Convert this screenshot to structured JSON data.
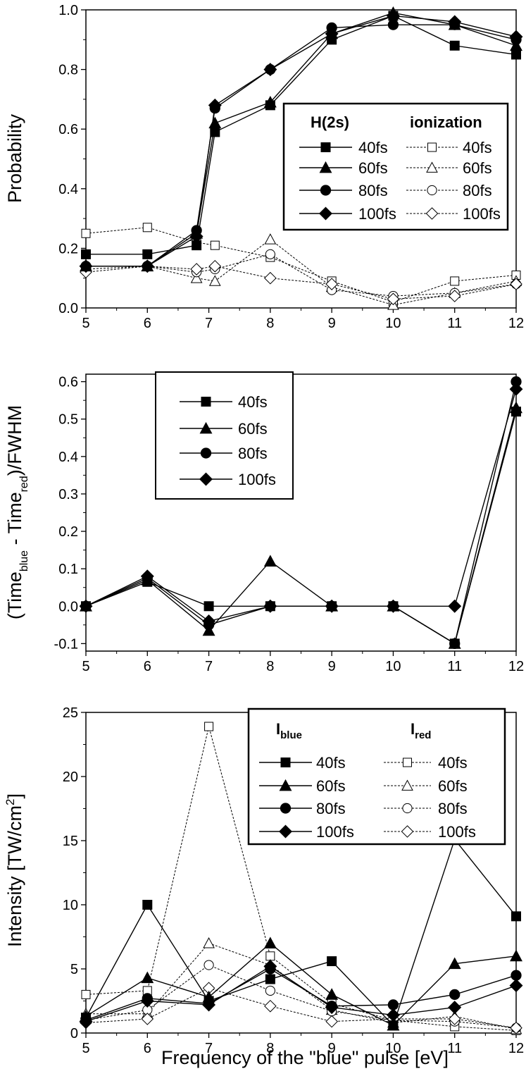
{
  "chart_data": [
    {
      "type": "line",
      "ylabel": "Probability",
      "xlim": [
        5,
        12
      ],
      "ylim": [
        0,
        1
      ],
      "xticks": [
        "5",
        "6",
        "7",
        "8",
        "9",
        "10",
        "11",
        "12"
      ],
      "yticks": [
        "0.0",
        "0.2",
        "0.4",
        "0.6",
        "0.8",
        "1.0"
      ],
      "legend": {
        "position": "right",
        "col1_title": "H(2s)",
        "col2_title": "ionization",
        "labels": [
          "40fs",
          "60fs",
          "80fs",
          "100fs"
        ]
      },
      "x": [
        5,
        6,
        6.8,
        7.1,
        8,
        9,
        10,
        11,
        12
      ],
      "series": [
        {
          "name": "H(2s) 40fs",
          "group": "filled",
          "marker": "square",
          "values": [
            0.18,
            0.18,
            0.21,
            0.59,
            0.68,
            0.9,
            0.98,
            0.88,
            0.85
          ]
        },
        {
          "name": "H(2s) 60fs",
          "group": "filled",
          "marker": "triangle",
          "values": [
            0.14,
            0.14,
            0.25,
            0.62,
            0.69,
            0.92,
            0.99,
            0.95,
            0.88
          ]
        },
        {
          "name": "H(2s) 80fs",
          "group": "filled",
          "marker": "circle",
          "values": [
            0.14,
            0.14,
            0.26,
            0.67,
            0.8,
            0.94,
            0.95,
            0.95,
            0.9
          ]
        },
        {
          "name": "H(2s) 100fs",
          "group": "filled",
          "marker": "diamond",
          "values": [
            0.14,
            0.14,
            0.24,
            0.68,
            0.8,
            0.92,
            0.98,
            0.96,
            0.91
          ]
        },
        {
          "name": "ionization 40fs",
          "group": "open",
          "marker": "square",
          "values": [
            0.25,
            0.27,
            0.22,
            0.21,
            0.17,
            0.09,
            0.02,
            0.09,
            0.11
          ]
        },
        {
          "name": "ionization 60fs",
          "group": "open",
          "marker": "triangle",
          "values": [
            0.14,
            0.14,
            0.1,
            0.09,
            0.23,
            0.07,
            0.01,
            0.05,
            0.09
          ]
        },
        {
          "name": "ionization 80fs",
          "group": "open",
          "marker": "circle",
          "values": [
            0.13,
            0.14,
            0.12,
            0.13,
            0.18,
            0.06,
            0.04,
            0.05,
            0.08
          ]
        },
        {
          "name": "ionization 100fs",
          "group": "open",
          "marker": "diamond",
          "values": [
            0.12,
            0.14,
            0.13,
            0.14,
            0.1,
            0.08,
            0.03,
            0.04,
            0.08
          ]
        }
      ]
    },
    {
      "type": "line",
      "ylabel_parts": [
        "(Time",
        "blue",
        " - Time",
        "red",
        ")/FWHM"
      ],
      "xlim": [
        5,
        12
      ],
      "ylim": [
        -0.12,
        0.62
      ],
      "xticks": [
        "5",
        "6",
        "7",
        "8",
        "9",
        "10",
        "11",
        "12"
      ],
      "yticks": [
        "-0.1",
        "0.0",
        "0.1",
        "0.2",
        "0.3",
        "0.4",
        "0.5",
        "0.6"
      ],
      "legend": {
        "position": "top-left",
        "labels": [
          "40fs",
          "60fs",
          "80fs",
          "100fs"
        ]
      },
      "x": [
        5,
        6,
        7,
        8,
        9,
        10,
        11,
        12
      ],
      "series": [
        {
          "name": "40fs",
          "group": "filled",
          "marker": "square",
          "values": [
            0,
            0.065,
            0,
            0,
            0,
            0,
            -0.1,
            0.52
          ]
        },
        {
          "name": "60fs",
          "group": "filled",
          "marker": "triangle",
          "values": [
            0,
            0.07,
            -0.065,
            0.12,
            0,
            0,
            -0.1,
            0.53
          ]
        },
        {
          "name": "80fs",
          "group": "filled",
          "marker": "circle",
          "values": [
            0,
            0.075,
            -0.05,
            0,
            0,
            0,
            -0.1,
            0.6
          ]
        },
        {
          "name": "100fs",
          "group": "filled",
          "marker": "diamond",
          "values": [
            0,
            0.08,
            -0.04,
            0,
            0,
            0,
            0,
            0.58
          ]
        }
      ]
    },
    {
      "type": "line",
      "ylabel_parts": [
        "Intensity [TW/cm",
        "2",
        "]"
      ],
      "xlabel": "Frequency of the \"blue\" pulse [eV]",
      "xlim": [
        5,
        12
      ],
      "ylim": [
        0,
        25
      ],
      "xticks": [
        "5",
        "6",
        "7",
        "8",
        "9",
        "10",
        "11",
        "12"
      ],
      "yticks": [
        "0",
        "5",
        "10",
        "15",
        "20",
        "25"
      ],
      "legend": {
        "position": "top-right",
        "col1_title_parts": [
          "I",
          "blue"
        ],
        "col2_title_parts": [
          "I",
          "red"
        ],
        "labels": [
          "40fs",
          "60fs",
          "80fs",
          "100fs"
        ]
      },
      "x": [
        5,
        6,
        7,
        8,
        9,
        10,
        11,
        12
      ],
      "series": [
        {
          "name": "I_blue 40fs",
          "group": "filled",
          "marker": "square",
          "values": [
            1.2,
            10.0,
            2.5,
            4.2,
            5.6,
            0.6,
            15.1,
            9.1
          ]
        },
        {
          "name": "I_blue 60fs",
          "group": "filled",
          "marker": "triangle",
          "values": [
            1.3,
            4.3,
            2.8,
            7.0,
            3.0,
            0.6,
            5.4,
            6.0
          ]
        },
        {
          "name": "I_blue 80fs",
          "group": "filled",
          "marker": "circle",
          "values": [
            1.0,
            2.7,
            2.3,
            5.0,
            2.1,
            2.2,
            3.0,
            4.5
          ]
        },
        {
          "name": "I_blue 100fs",
          "group": "filled",
          "marker": "diamond",
          "values": [
            0.9,
            2.5,
            2.2,
            5.2,
            2.0,
            1.4,
            2.0,
            3.7
          ]
        },
        {
          "name": "I_red 40fs",
          "group": "open",
          "marker": "square",
          "values": [
            3.0,
            3.3,
            23.9,
            6.0,
            2.3,
            1.0,
            0.5,
            0.2
          ]
        },
        {
          "name": "I_red 60fs",
          "group": "open",
          "marker": "triangle",
          "values": [
            1.5,
            1.5,
            7.0,
            5.3,
            1.8,
            0.8,
            1.3,
            0.3
          ]
        },
        {
          "name": "I_red 80fs",
          "group": "open",
          "marker": "circle",
          "values": [
            1.0,
            1.8,
            5.3,
            3.3,
            1.7,
            1.0,
            0.9,
            0.4
          ]
        },
        {
          "name": "I_red 100fs",
          "group": "open",
          "marker": "diamond",
          "values": [
            0.8,
            1.1,
            3.5,
            2.1,
            0.9,
            1.1,
            1.1,
            0.4
          ]
        }
      ]
    }
  ]
}
